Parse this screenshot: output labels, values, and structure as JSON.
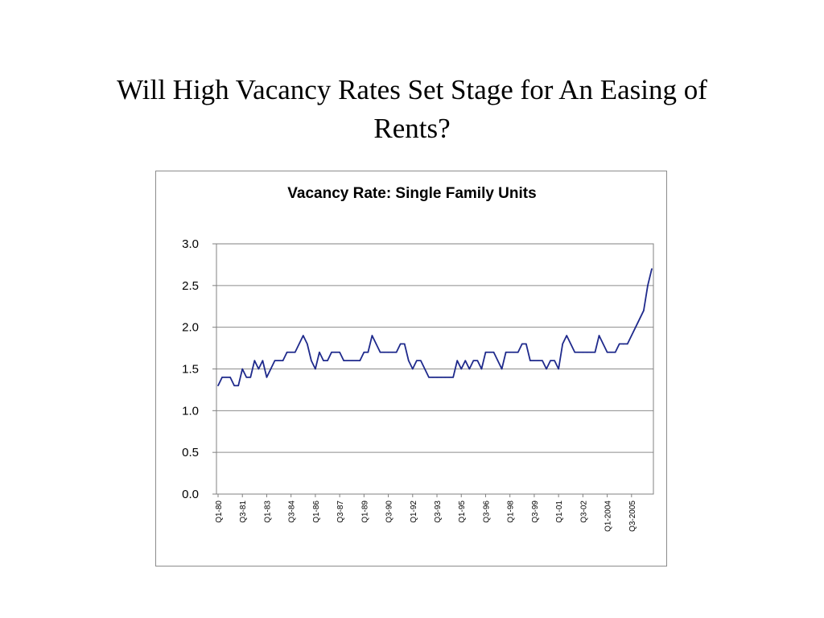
{
  "slide": {
    "title_line1": "Will High Vacancy Rates Set Stage for An Easing of",
    "title_line2": "Rents?"
  },
  "chart_data": {
    "type": "line",
    "title": "Vacancy Rate: Single Family Units",
    "xlabel": "",
    "ylabel": "",
    "ylim": [
      0,
      3
    ],
    "yticks": [
      "0.0",
      "0.5",
      "1.0",
      "1.5",
      "2.0",
      "2.5",
      "3.0"
    ],
    "grid": true,
    "legend": "none",
    "line_color": "#1f2a8c",
    "x_tick_labels": [
      "Q1-80",
      "Q3-81",
      "Q1-83",
      "Q3-84",
      "Q1-86",
      "Q3-87",
      "Q1-89",
      "Q3-90",
      "Q1-92",
      "Q3-93",
      "Q1-95",
      "Q3-96",
      "Q1-98",
      "Q3-99",
      "Q1-01",
      "Q3-02",
      "Q1-2004",
      "Q3-2005"
    ],
    "series": [
      {
        "values": [
          1.3,
          1.4,
          1.4,
          1.4,
          1.3,
          1.3,
          1.5,
          1.4,
          1.4,
          1.6,
          1.5,
          1.6,
          1.4,
          1.5,
          1.6,
          1.6,
          1.6,
          1.7,
          1.7,
          1.7,
          1.8,
          1.9,
          1.8,
          1.6,
          1.5,
          1.7,
          1.6,
          1.6,
          1.7,
          1.7,
          1.7,
          1.6,
          1.6,
          1.6,
          1.6,
          1.6,
          1.7,
          1.7,
          1.9,
          1.8,
          1.7,
          1.7,
          1.7,
          1.7,
          1.7,
          1.8,
          1.8,
          1.6,
          1.5,
          1.6,
          1.6,
          1.5,
          1.4,
          1.4,
          1.4,
          1.4,
          1.4,
          1.4,
          1.4,
          1.6,
          1.5,
          1.6,
          1.5,
          1.6,
          1.6,
          1.5,
          1.7,
          1.7,
          1.7,
          1.6,
          1.5,
          1.7,
          1.7,
          1.7,
          1.7,
          1.8,
          1.8,
          1.6,
          1.6,
          1.6,
          1.6,
          1.5,
          1.6,
          1.6,
          1.5,
          1.8,
          1.9,
          1.8,
          1.7,
          1.7,
          1.7,
          1.7,
          1.7,
          1.7,
          1.9,
          1.8,
          1.7,
          1.7,
          1.7,
          1.8,
          1.8,
          1.8,
          1.9,
          2.0,
          2.1,
          2.2,
          2.5,
          2.7
        ]
      }
    ]
  }
}
